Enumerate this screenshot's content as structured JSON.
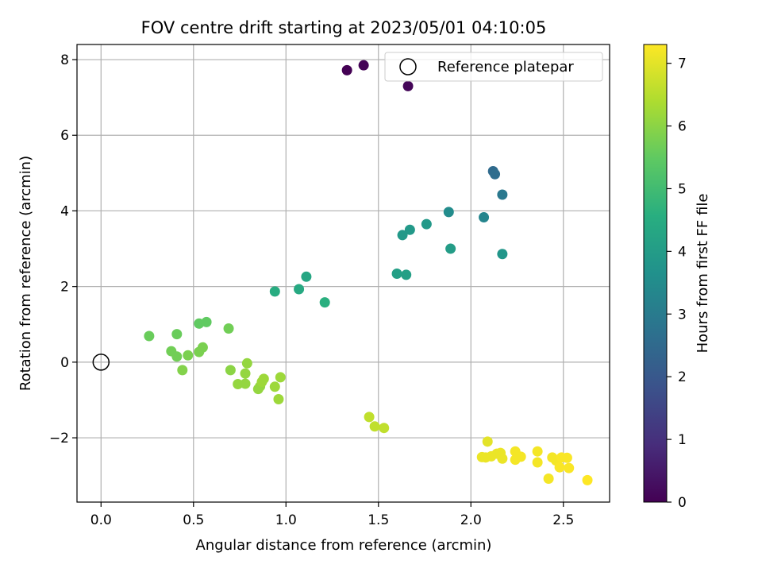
{
  "chart_data": {
    "type": "scatter",
    "title": "FOV centre drift starting at 2023/05/01 04:10:05",
    "xlabel": "Angular distance from reference (arcmin)",
    "ylabel": "Rotation from reference (arcmin)",
    "xlim": [
      -0.13,
      2.75
    ],
    "ylim": [
      -3.7,
      8.4
    ],
    "xticks": [
      0.0,
      0.5,
      1.0,
      1.5,
      2.0,
      2.5
    ],
    "yticks": [
      -2,
      0,
      2,
      4,
      6,
      8
    ],
    "xtick_labels": [
      "0.0",
      "0.5",
      "1.0",
      "1.5",
      "2.0",
      "2.5"
    ],
    "ytick_labels": [
      "−2",
      "0",
      "2",
      "4",
      "6",
      "8"
    ],
    "grid": true,
    "legend": {
      "placement": "top-right",
      "entries": [
        "Reference platepar"
      ]
    },
    "reference_point": {
      "x": 0.0,
      "y": 0.0
    },
    "colorbar": {
      "label": "Hours from first FF file",
      "range": [
        0,
        7.3
      ],
      "ticks": [
        0,
        1,
        2,
        3,
        4,
        5,
        6,
        7
      ],
      "tick_labels": [
        "0",
        "1",
        "2",
        "3",
        "4",
        "5",
        "6",
        "7"
      ],
      "colormap": "viridis"
    },
    "points": [
      {
        "x": 1.33,
        "y": 7.72,
        "c": 0.0
      },
      {
        "x": 1.42,
        "y": 7.85,
        "c": 0.05
      },
      {
        "x": 1.66,
        "y": 7.3,
        "c": 0.1
      },
      {
        "x": 2.12,
        "y": 5.05,
        "c": 2.5
      },
      {
        "x": 2.13,
        "y": 4.97,
        "c": 2.6
      },
      {
        "x": 2.17,
        "y": 4.43,
        "c": 2.9
      },
      {
        "x": 1.88,
        "y": 3.97,
        "c": 3.5
      },
      {
        "x": 2.07,
        "y": 3.83,
        "c": 3.3
      },
      {
        "x": 1.76,
        "y": 3.65,
        "c": 3.9
      },
      {
        "x": 1.67,
        "y": 3.5,
        "c": 3.9
      },
      {
        "x": 1.63,
        "y": 3.36,
        "c": 3.9
      },
      {
        "x": 1.89,
        "y": 3.0,
        "c": 4.0
      },
      {
        "x": 2.17,
        "y": 2.86,
        "c": 3.8
      },
      {
        "x": 1.6,
        "y": 2.34,
        "c": 4.1
      },
      {
        "x": 1.65,
        "y": 2.31,
        "c": 4.1
      },
      {
        "x": 1.11,
        "y": 2.26,
        "c": 4.3
      },
      {
        "x": 0.94,
        "y": 1.87,
        "c": 4.5
      },
      {
        "x": 1.07,
        "y": 1.93,
        "c": 4.4
      },
      {
        "x": 1.21,
        "y": 1.58,
        "c": 4.6
      },
      {
        "x": 0.26,
        "y": 0.69,
        "c": 5.6
      },
      {
        "x": 0.41,
        "y": 0.74,
        "c": 5.6
      },
      {
        "x": 0.53,
        "y": 1.02,
        "c": 5.5
      },
      {
        "x": 0.57,
        "y": 1.06,
        "c": 5.5
      },
      {
        "x": 0.69,
        "y": 0.89,
        "c": 5.7
      },
      {
        "x": 0.38,
        "y": 0.29,
        "c": 5.7
      },
      {
        "x": 0.41,
        "y": 0.15,
        "c": 5.7
      },
      {
        "x": 0.47,
        "y": 0.18,
        "c": 5.8
      },
      {
        "x": 0.53,
        "y": 0.27,
        "c": 5.8
      },
      {
        "x": 0.55,
        "y": 0.39,
        "c": 5.8
      },
      {
        "x": 0.44,
        "y": -0.21,
        "c": 5.9
      },
      {
        "x": 0.7,
        "y": -0.21,
        "c": 6.0
      },
      {
        "x": 0.79,
        "y": -0.03,
        "c": 6.1
      },
      {
        "x": 0.78,
        "y": -0.3,
        "c": 6.1
      },
      {
        "x": 0.74,
        "y": -0.58,
        "c": 6.1
      },
      {
        "x": 0.78,
        "y": -0.57,
        "c": 6.1
      },
      {
        "x": 0.85,
        "y": -0.71,
        "c": 6.1
      },
      {
        "x": 0.86,
        "y": -0.64,
        "c": 6.1
      },
      {
        "x": 0.87,
        "y": -0.52,
        "c": 6.2
      },
      {
        "x": 0.88,
        "y": -0.44,
        "c": 6.2
      },
      {
        "x": 0.94,
        "y": -0.65,
        "c": 6.2
      },
      {
        "x": 0.97,
        "y": -0.4,
        "c": 6.2
      },
      {
        "x": 0.96,
        "y": -0.98,
        "c": 6.2
      },
      {
        "x": 1.45,
        "y": -1.45,
        "c": 6.6
      },
      {
        "x": 1.48,
        "y": -1.7,
        "c": 6.6
      },
      {
        "x": 1.53,
        "y": -1.74,
        "c": 6.6
      },
      {
        "x": 2.09,
        "y": -2.1,
        "c": 7.0
      },
      {
        "x": 2.06,
        "y": -2.51,
        "c": 7.1
      },
      {
        "x": 2.08,
        "y": -2.52,
        "c": 7.1
      },
      {
        "x": 2.11,
        "y": -2.49,
        "c": 7.1
      },
      {
        "x": 2.14,
        "y": -2.42,
        "c": 7.1
      },
      {
        "x": 2.16,
        "y": -2.4,
        "c": 7.1
      },
      {
        "x": 2.17,
        "y": -2.55,
        "c": 7.1
      },
      {
        "x": 2.24,
        "y": -2.36,
        "c": 7.2
      },
      {
        "x": 2.24,
        "y": -2.58,
        "c": 7.2
      },
      {
        "x": 2.27,
        "y": -2.5,
        "c": 7.2
      },
      {
        "x": 2.36,
        "y": -2.36,
        "c": 7.2
      },
      {
        "x": 2.36,
        "y": -2.65,
        "c": 7.2
      },
      {
        "x": 2.42,
        "y": -3.08,
        "c": 7.2
      },
      {
        "x": 2.44,
        "y": -2.52,
        "c": 7.2
      },
      {
        "x": 2.46,
        "y": -2.6,
        "c": 7.2
      },
      {
        "x": 2.48,
        "y": -2.78,
        "c": 7.25
      },
      {
        "x": 2.49,
        "y": -2.52,
        "c": 7.25
      },
      {
        "x": 2.52,
        "y": -2.53,
        "c": 7.25
      },
      {
        "x": 2.53,
        "y": -2.8,
        "c": 7.25
      },
      {
        "x": 2.63,
        "y": -3.12,
        "c": 7.3
      }
    ]
  }
}
